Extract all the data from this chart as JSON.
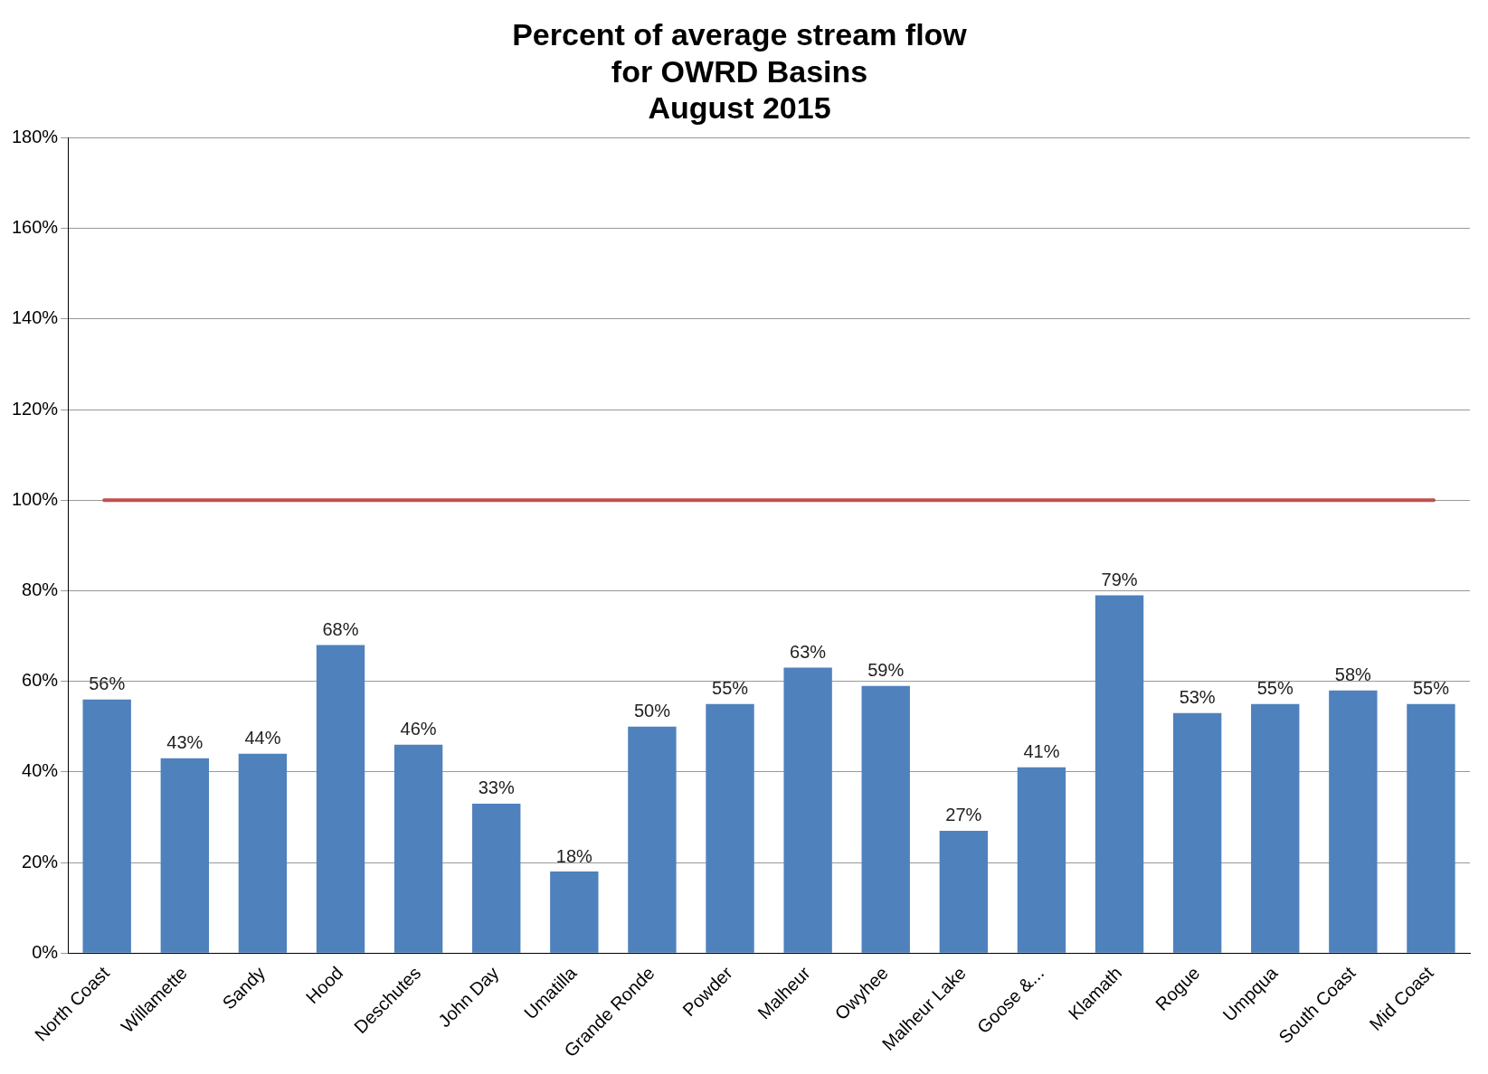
{
  "chart_data": {
    "type": "bar",
    "title": "Percent of average stream flow\nfor OWRD Basins\nAugust 2015",
    "categories": [
      "North Coast",
      "Willamette",
      "Sandy",
      "Hood",
      "Deschutes",
      "John Day",
      "Umatilla",
      "Grande Ronde",
      "Powder",
      "Malheur",
      "Owyhee",
      "Malheur Lake",
      "Goose &...",
      "Klamath",
      "Rogue",
      "Umpqua",
      "South Coast",
      "Mid Coast"
    ],
    "values": [
      56,
      43,
      44,
      68,
      46,
      33,
      18,
      50,
      55,
      63,
      59,
      27,
      41,
      79,
      53,
      55,
      58,
      55
    ],
    "value_labels": [
      "56%",
      "43%",
      "44%",
      "68%",
      "46%",
      "33%",
      "18%",
      "50%",
      "55%",
      "63%",
      "59%",
      "27%",
      "41%",
      "79%",
      "53%",
      "55%",
      "58%",
      "55%"
    ],
    "color": "#4f81bd",
    "ylim": [
      0,
      180
    ],
    "yticks": [
      {
        "value": 0,
        "label": "0%"
      },
      {
        "value": 20,
        "label": "20%"
      },
      {
        "value": 40,
        "label": "40%"
      },
      {
        "value": 60,
        "label": "60%"
      },
      {
        "value": 80,
        "label": "80%"
      },
      {
        "value": 100,
        "label": "100%"
      },
      {
        "value": 120,
        "label": "120%"
      },
      {
        "value": 140,
        "label": "140%"
      },
      {
        "value": 160,
        "label": "160%"
      },
      {
        "value": 180,
        "label": "180%"
      }
    ],
    "ref_lines": [
      {
        "axis": "y",
        "value": 100,
        "color": "#c0504d"
      }
    ],
    "grid": "y",
    "legend": false
  }
}
